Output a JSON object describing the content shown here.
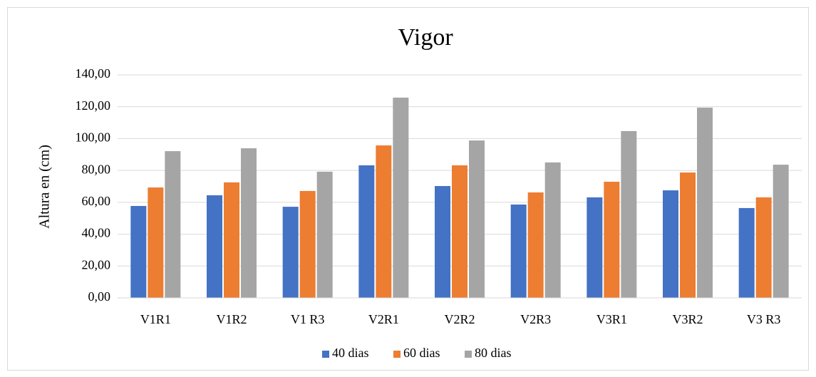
{
  "chart_data": {
    "type": "bar",
    "title": "Vigor",
    "y_label": "Altura en (cm)",
    "categories": [
      "V1R1",
      "V1R2",
      "V1 R3",
      "V2R1",
      "V2R2",
      "V2R3",
      "V3R1",
      "V3R2",
      "V3 R3"
    ],
    "series": [
      {
        "name": "40 dias",
        "color": "#4472c4",
        "values": [
          57.7,
          64.4,
          57.2,
          83.2,
          70.2,
          58.6,
          63.1,
          67.5,
          56.4
        ]
      },
      {
        "name": "60 dias",
        "color": "#ed7d31",
        "values": [
          69.3,
          72.5,
          67.1,
          95.7,
          83.2,
          66.2,
          72.9,
          78.7,
          63.1
        ]
      },
      {
        "name": "80 dias",
        "color": "#a5a5a5",
        "values": [
          92.1,
          93.9,
          79.2,
          125.7,
          98.8,
          85.0,
          104.7,
          119.4,
          83.6
        ]
      }
    ],
    "ylim": [
      0,
      140
    ],
    "yticks": [
      {
        "value": 0,
        "label": "0,00"
      },
      {
        "value": 20,
        "label": "20,00"
      },
      {
        "value": 40,
        "label": "40,00"
      },
      {
        "value": 60,
        "label": "60,00"
      },
      {
        "value": 80,
        "label": "80,00"
      },
      {
        "value": 100,
        "label": "100,00"
      },
      {
        "value": 120,
        "label": "120,00"
      },
      {
        "value": 140,
        "label": "140,00"
      }
    ],
    "grid": true,
    "legend": "bottom"
  }
}
